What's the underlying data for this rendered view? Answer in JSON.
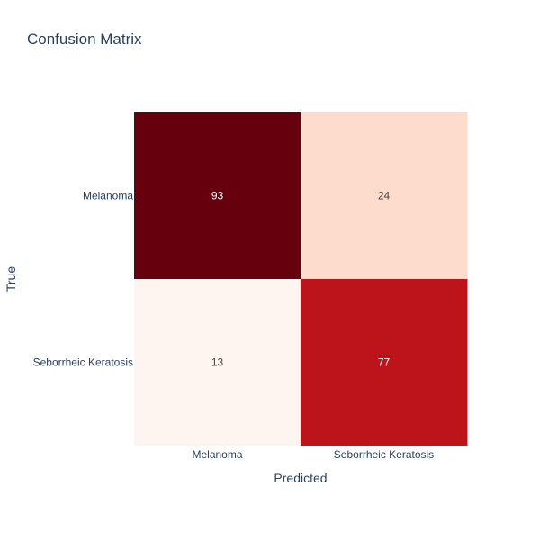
{
  "chart_data": {
    "type": "heatmap",
    "title": "Confusion Matrix",
    "xlabel": "Predicted",
    "ylabel": "True",
    "x_categories": [
      "Melanoma",
      "Seborrheic Keratosis"
    ],
    "y_categories": [
      "Melanoma",
      "Seborrheic Keratosis"
    ],
    "z": [
      [
        93,
        24
      ],
      [
        13,
        77
      ]
    ],
    "colorscale": "Reds",
    "zrange": [
      13,
      93
    ],
    "showscale": false,
    "colors": {
      "low": "#fff5f0",
      "high": "#67000d",
      "text_dark": "#444444",
      "text_light": "#ffffff",
      "axis_text": "#2a3f5f"
    }
  }
}
